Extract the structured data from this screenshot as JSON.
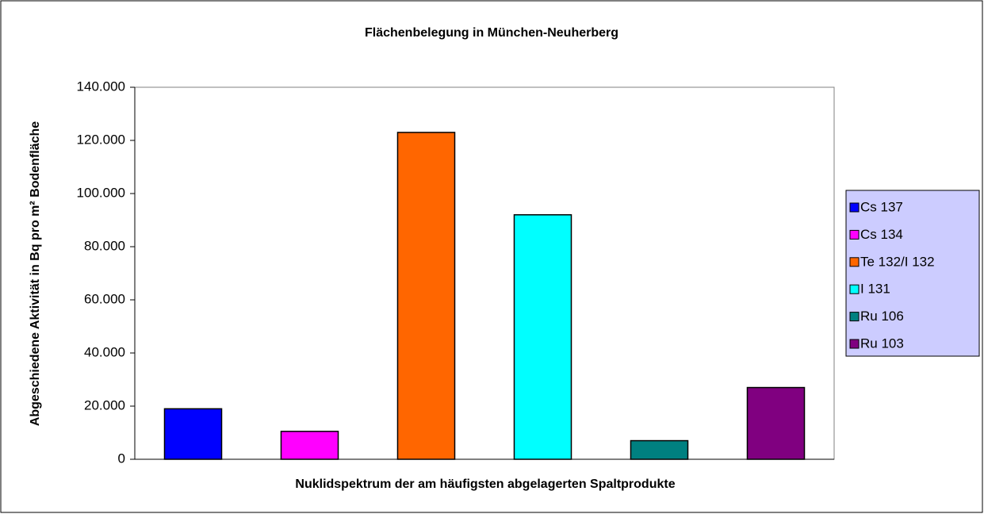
{
  "chart_data": {
    "type": "bar",
    "title": "Flächenbelegung in München-Neuherberg",
    "x_label": "Nuklidspektrum der am häufigsten abgelagerten Spaltprodukte",
    "y_label": "Abgeschiedene Aktivität in Bq pro m² Bodenfläche",
    "categories": [
      null
    ],
    "series": [
      {
        "name": "Cs 137",
        "color": "#0000ff",
        "values": [
          19000
        ]
      },
      {
        "name": "Cs 134",
        "color": "#ff00ff",
        "values": [
          10500
        ]
      },
      {
        "name": "Te 132/I 132",
        "color": "#ff6600",
        "values": [
          123000
        ]
      },
      {
        "name": "I 131",
        "color": "#00ffff",
        "values": [
          92000
        ]
      },
      {
        "name": "Ru 106",
        "color": "#008080",
        "values": [
          7000
        ]
      },
      {
        "name": "Ru 103",
        "color": "#800080",
        "values": [
          27000
        ]
      }
    ],
    "ylim": [
      0,
      140000
    ],
    "yticks": [
      0,
      {
        "value": 20000,
        "label": "20.000"
      },
      {
        "value": 40000,
        "label": "40.000"
      },
      {
        "value": 60000,
        "label": "60.000"
      },
      {
        "value": 80000,
        "label": "80.000"
      },
      {
        "value": 100000,
        "label": "100.000"
      },
      {
        "value": 120000,
        "label": "120.000"
      },
      {
        "value": 140000,
        "label": "140.000"
      }
    ],
    "legend": "right"
  }
}
